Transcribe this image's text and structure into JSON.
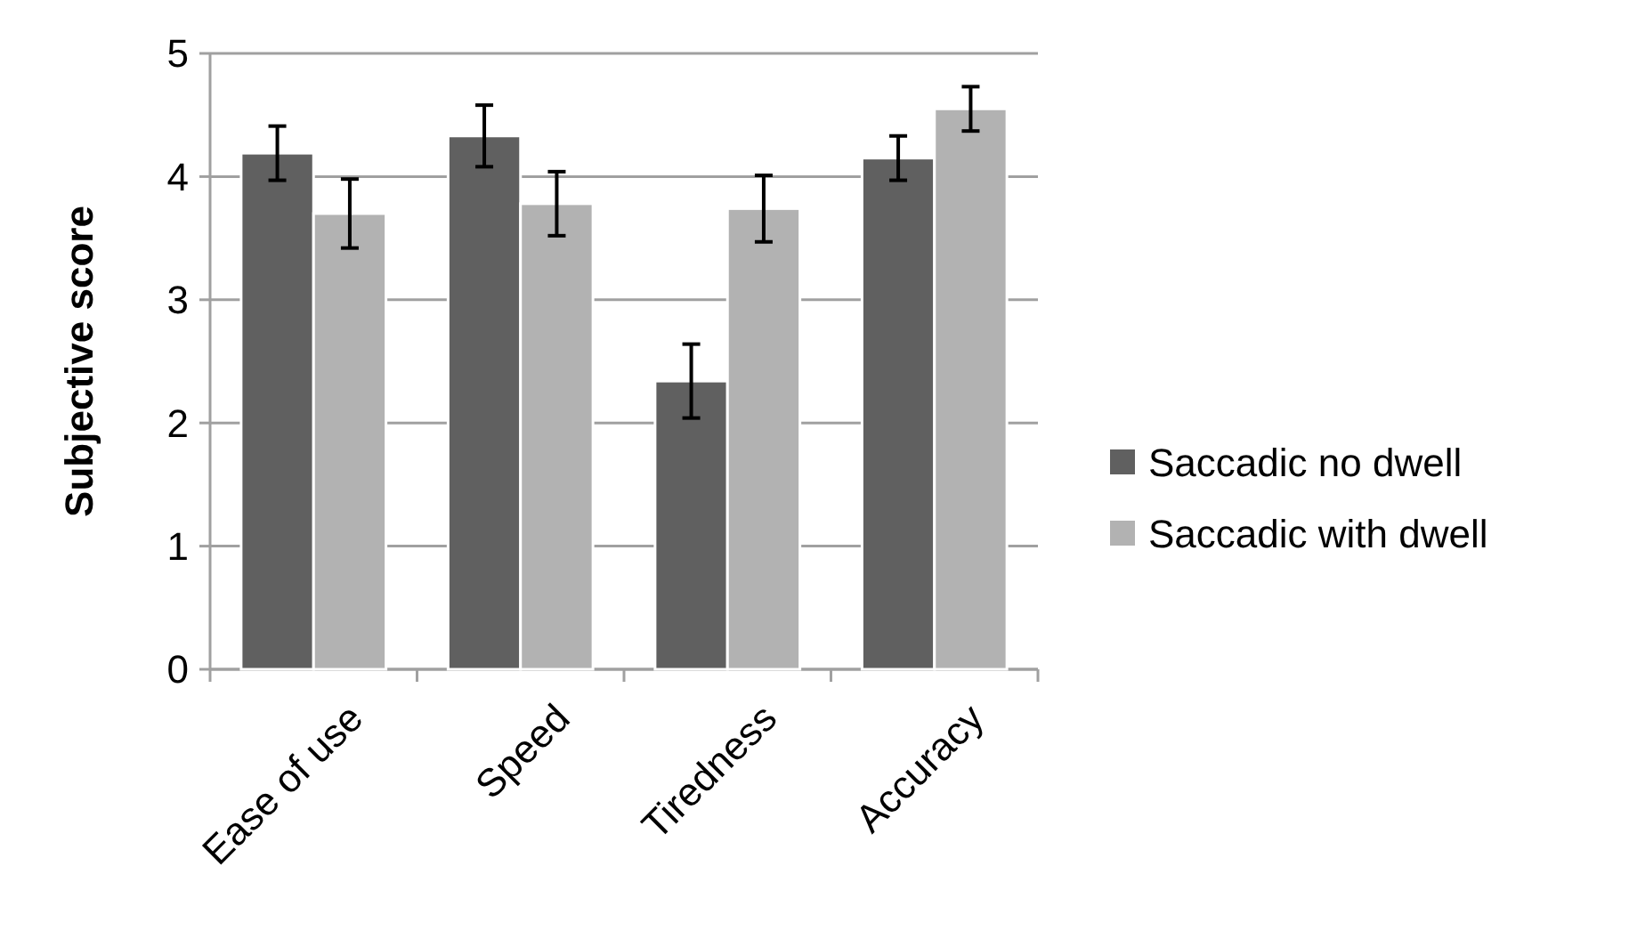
{
  "chart_data": {
    "type": "bar",
    "ylabel": "Subjective score",
    "categories": [
      "Ease of use",
      "Speed",
      "Tiredness",
      "Accuracy"
    ],
    "series": [
      {
        "name": "Saccadic no dwell",
        "color": "#606060",
        "values": [
          4.19,
          4.33,
          2.34,
          4.15
        ],
        "errors": [
          0.22,
          0.25,
          0.3,
          0.18
        ]
      },
      {
        "name": "Saccadic with dwell",
        "color": "#b2b2b2",
        "values": [
          3.7,
          3.78,
          3.74,
          4.55
        ],
        "errors": [
          0.28,
          0.26,
          0.27,
          0.18
        ]
      }
    ],
    "ylim": [
      0,
      5
    ],
    "yticks": [
      0,
      1,
      2,
      3,
      4,
      5
    ],
    "grid": "y",
    "legend": "right"
  }
}
